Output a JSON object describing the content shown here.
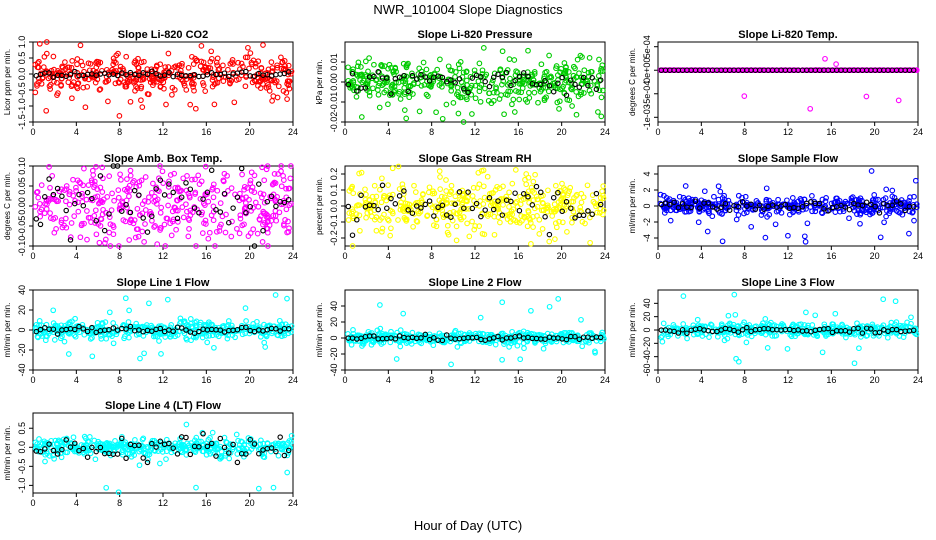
{
  "figure": {
    "title": "NWR_101004  Slope Diagnostics",
    "xlabel": "Hour of Day (UTC)"
  },
  "colors": {
    "red": "#ff0000",
    "green": "#00cc00",
    "magenta": "#ff00ff",
    "yellow": "#ffff00",
    "blue": "#0000ff",
    "cyan": "#00ffff",
    "black": "#000000"
  },
  "chart_data": [
    {
      "type": "scatter",
      "title": "Slope Li-820 CO2",
      "ylabel": "Licor ppm per min.",
      "xlim": [
        0,
        24
      ],
      "ylim": [
        -1.5,
        1.0
      ],
      "xticks": [
        "0",
        "4",
        "8",
        "12",
        "16",
        "20",
        "24"
      ],
      "yticks": [
        -1.5,
        -1.0,
        -0.5,
        0.0,
        0.5,
        1.0
      ],
      "ytick_labels": [
        "-1.5",
        "-1.0",
        "-0.5",
        "0.0",
        "0.5",
        "1.0"
      ],
      "color_key": "red",
      "spread": 0.3,
      "outliers": 0.06,
      "outlier_range": [
        -1.4,
        1.0
      ],
      "mean_spread": 0.05,
      "seed": 11
    },
    {
      "type": "scatter",
      "title": "Slope Li-820 Pressure",
      "ylabel": "kPa per min.",
      "xlim": [
        0,
        24
      ],
      "ylim": [
        -0.02,
        0.02
      ],
      "xticks": [
        "0",
        "4",
        "8",
        "12",
        "16",
        "20",
        "24"
      ],
      "yticks": [
        -0.02,
        -0.01,
        0.0,
        0.01
      ],
      "ytick_labels": [
        "-0.02",
        "-0.01",
        "0.00",
        "0.01"
      ],
      "color_key": "green",
      "spread": 0.005,
      "outliers": 0.08,
      "outlier_range": [
        -0.02,
        0.015
      ],
      "mean_spread": 0.003,
      "seed": 23
    },
    {
      "type": "scatter",
      "title": "Slope Li-820 Temp.",
      "ylabel": "degrees C per min.",
      "xlim": [
        0,
        24
      ],
      "ylim": [
        -0.0011,
        0.0006
      ],
      "xticks": [
        "0",
        "4",
        "8",
        "12",
        "16",
        "20",
        "24"
      ],
      "yticks": [
        -0.001,
        -0.0005,
        0.0,
        0.0005
      ],
      "ytick_labels": [
        "-1e-03",
        "-5e-04",
        "0e+00",
        "5e-04"
      ],
      "color_key": "magenta",
      "spread": 0.0,
      "outliers": 0.03,
      "outlier_range": [
        -0.001,
        0.0005
      ],
      "mean_spread": 0.0,
      "seed": 37
    },
    {
      "type": "scatter",
      "title": "Slope Amb. Box Temp.",
      "ylabel": "degrees C per min.",
      "xlim": [
        0,
        24
      ],
      "ylim": [
        -0.1,
        0.1
      ],
      "xticks": [
        "0",
        "4",
        "8",
        "12",
        "16",
        "20",
        "24"
      ],
      "yticks": [
        -0.1,
        -0.05,
        0.0,
        0.05,
        0.1
      ],
      "ytick_labels": [
        "-0.10",
        "-0.05",
        "0.00",
        "0.05",
        "0.10"
      ],
      "color_key": "magenta",
      "spread": 0.045,
      "outliers": 0.02,
      "outlier_range": [
        -0.1,
        0.1
      ],
      "mean_spread": 0.04,
      "seed": 41
    },
    {
      "type": "scatter",
      "title": "Slope Gas Stream RH",
      "ylabel": "percent per min.",
      "xlim": [
        0,
        24
      ],
      "ylim": [
        -0.25,
        0.25
      ],
      "xticks": [
        "0",
        "4",
        "8",
        "12",
        "16",
        "20",
        "24"
      ],
      "yticks": [
        -0.2,
        -0.1,
        0.0,
        0.1,
        0.2
      ],
      "ytick_labels": [
        "-0.2",
        "-0.1",
        "0.0",
        "0.1",
        "0.2"
      ],
      "color_key": "yellow",
      "spread": 0.09,
      "outliers": 0.02,
      "outlier_range": [
        -0.25,
        0.25
      ],
      "mean_spread": 0.07,
      "seed": 53
    },
    {
      "type": "scatter",
      "title": "Slope Sample Flow",
      "ylabel": "ml/min per min.",
      "xlim": [
        0,
        24
      ],
      "ylim": [
        -5,
        5
      ],
      "xticks": [
        "0",
        "4",
        "8",
        "12",
        "16",
        "20",
        "24"
      ],
      "yticks": [
        -4,
        -2,
        0,
        2,
        4
      ],
      "ytick_labels": [
        "-4",
        "-2",
        "0",
        "2",
        "4"
      ],
      "color_key": "blue",
      "spread": 0.5,
      "outliers": 0.08,
      "outlier_range": [
        -4.5,
        4.5
      ],
      "mean_spread": 0.3,
      "seed": 67
    },
    {
      "type": "scatter",
      "title": "Slope Line 1 Flow",
      "ylabel": "ml/min per min.",
      "xlim": [
        0,
        24
      ],
      "ylim": [
        -40,
        40
      ],
      "xticks": [
        "0",
        "4",
        "8",
        "12",
        "16",
        "20",
        "24"
      ],
      "yticks": [
        -40,
        -20,
        0,
        20,
        40
      ],
      "ytick_labels": [
        "-40",
        "-20",
        "0",
        "20",
        "40"
      ],
      "color_key": "cyan",
      "spread": 4,
      "outliers": 0.06,
      "outlier_range": [
        -40,
        40
      ],
      "mean_spread": 1.5,
      "seed": 71
    },
    {
      "type": "scatter",
      "title": "Slope Line 2 Flow",
      "ylabel": "ml/min per min.",
      "xlim": [
        0,
        24
      ],
      "ylim": [
        -40,
        60
      ],
      "xticks": [
        "0",
        "4",
        "8",
        "12",
        "16",
        "20",
        "24"
      ],
      "yticks": [
        -40,
        -20,
        0,
        20,
        40
      ],
      "ytick_labels": [
        "-40",
        "-20",
        "0",
        "20",
        "40"
      ],
      "color_key": "cyan",
      "spread": 4,
      "outliers": 0.06,
      "outlier_range": [
        -40,
        55
      ],
      "mean_spread": 1.5,
      "seed": 83
    },
    {
      "type": "scatter",
      "title": "Slope Line 3 Flow",
      "ylabel": "ml/min per min.",
      "xlim": [
        0,
        24
      ],
      "ylim": [
        -60,
        60
      ],
      "xticks": [
        "0",
        "4",
        "8",
        "12",
        "16",
        "20",
        "24"
      ],
      "yticks": [
        -60,
        -40,
        -20,
        0,
        20,
        40
      ],
      "ytick_labels": [
        "-60",
        "-40",
        "-20",
        "0",
        "20",
        "40"
      ],
      "color_key": "cyan",
      "spread": 5,
      "outliers": 0.06,
      "outlier_range": [
        -55,
        55
      ],
      "mean_spread": 2,
      "seed": 97
    },
    {
      "type": "scatter",
      "title": "Slope Line 4 (LT) Flow",
      "ylabel": "ml/min per min.",
      "xlim": [
        0,
        24
      ],
      "ylim": [
        -1.2,
        0.9
      ],
      "xticks": [
        "0",
        "4",
        "8",
        "12",
        "16",
        "20",
        "24"
      ],
      "yticks": [
        -1.0,
        -0.5,
        0.0,
        0.5
      ],
      "ytick_labels": [
        "-1.0",
        "-0.5",
        "0.0",
        "0.5"
      ],
      "color_key": "cyan",
      "spread": 0.12,
      "outliers": 0.03,
      "outlier_range": [
        -1.2,
        0.8
      ],
      "mean_spread": 0.15,
      "seed": 101
    }
  ]
}
